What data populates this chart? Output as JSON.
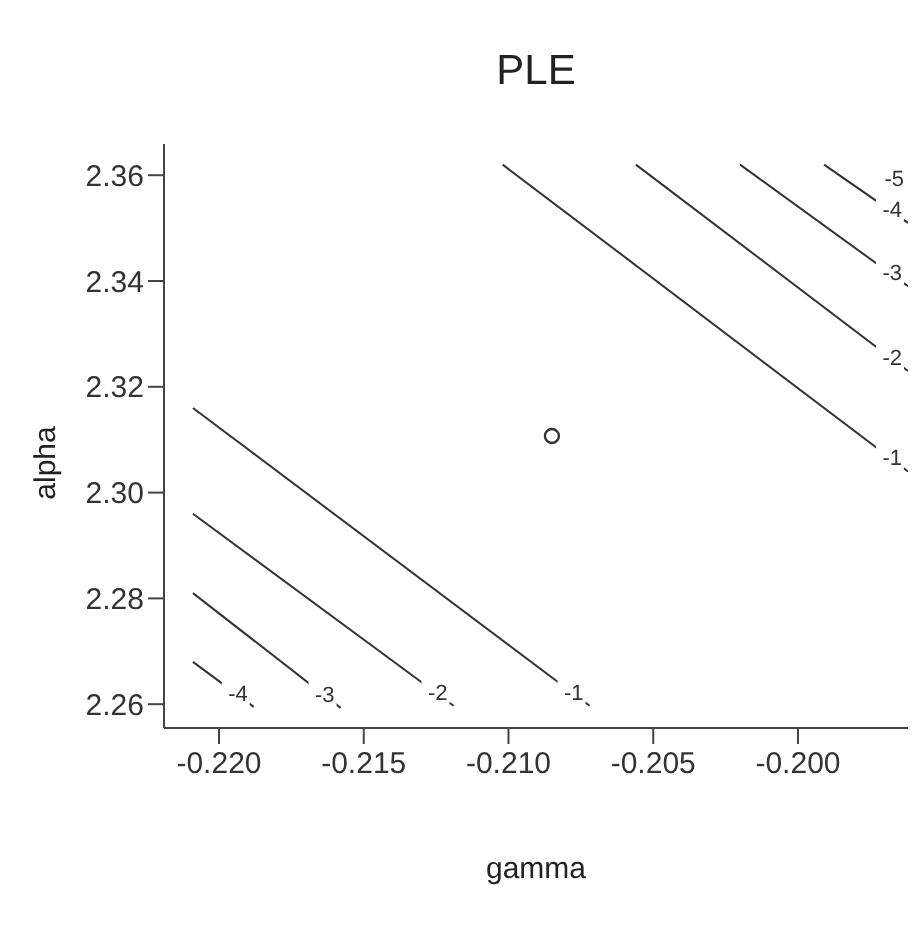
{
  "chart_data": {
    "type": "line",
    "title": "PLE",
    "xlabel": "gamma",
    "ylabel": "alpha",
    "marker": "none",
    "line_style": "solid",
    "xlim": [
      -0.2219,
      -0.1962
    ],
    "xticks": [
      {
        "value": -0.22,
        "label": "-0.220"
      },
      -0.215,
      {
        "value": -0.21,
        "label": "-0.210"
      },
      -0.205,
      {
        "value": -0.2,
        "label": "-0.200"
      }
    ],
    "ylim": [
      2.2555,
      2.3659
    ],
    "yticks": [
      2.26,
      2.28,
      {
        "value": 2.3,
        "label": "2.30"
      },
      2.32,
      2.34,
      2.36
    ],
    "series": [
      {
        "name": "-4",
        "color": "#333333",
        "x": [
          -0.2209,
          -0.2188
        ],
        "values": [
          2.268,
          2.2595
        ]
      },
      {
        "name": "-3",
        "color": "#333333",
        "x": [
          -0.2209,
          -0.2158
        ],
        "values": [
          2.281,
          2.2593
        ]
      },
      {
        "name": "-2",
        "color": "#333333",
        "x": [
          -0.2209,
          -0.2119
        ],
        "values": [
          2.296,
          2.2597
        ]
      },
      {
        "name": "-1",
        "color": "#333333",
        "x": [
          -0.2209,
          -0.2072
        ],
        "values": [
          2.316,
          2.2597
        ]
      },
      {
        "name": "-1",
        "color": "#333333",
        "x": [
          -0.2102,
          -0.1962
        ],
        "values": [
          2.362,
          2.304
        ]
      },
      {
        "name": "-2",
        "color": "#333333",
        "x": [
          -0.2056,
          -0.1962
        ],
        "values": [
          2.362,
          2.323
        ]
      },
      {
        "name": "-3",
        "color": "#333333",
        "x": [
          -0.202,
          -0.1962
        ],
        "values": [
          2.362,
          2.339
        ]
      },
      {
        "name": "-4",
        "color": "#333333",
        "x": [
          -0.1991,
          -0.1962
        ],
        "values": [
          2.362,
          2.351
        ]
      },
      {
        "type": "scatter",
        "marker": "circle",
        "color": "#333333",
        "x": [
          -0.2085
        ],
        "values": [
          2.3107
        ]
      }
    ],
    "annotations": [
      "-5"
    ]
  }
}
